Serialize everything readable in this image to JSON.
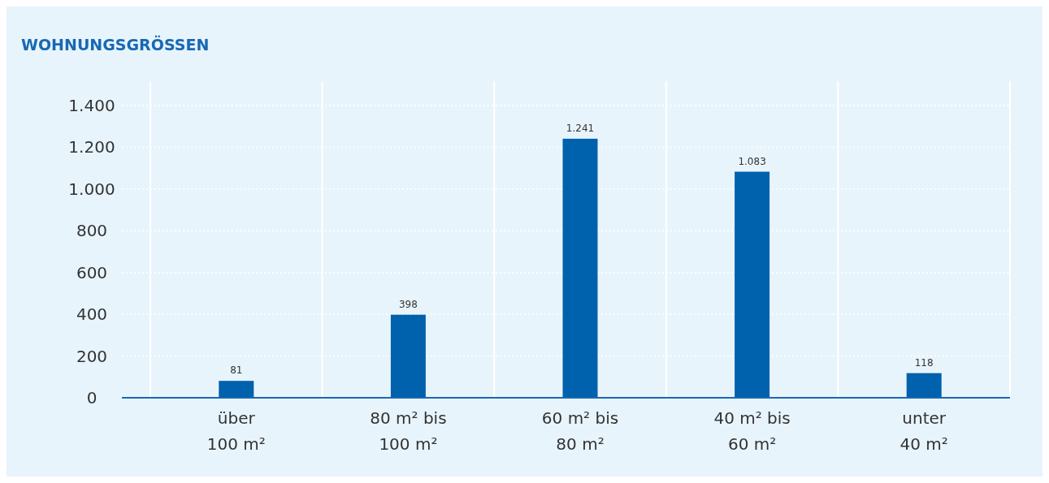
{
  "chart_data": {
    "type": "bar",
    "title": "WOHNUNGSGRÖSSEN",
    "categories": [
      "über\n100 m²",
      "80 m² bis\n100 m²",
      "60 m² bis\n80 m²",
      "40 m² bis\n60 m²",
      "unter\n40 m²"
    ],
    "values": [
      81,
      398,
      1241,
      1083,
      118
    ],
    "value_labels": [
      "81",
      "398",
      "1.241",
      "1.083",
      "118"
    ],
    "color": "#0061ad",
    "ylim": [
      0,
      1400
    ],
    "yticks": [
      0,
      200,
      400,
      600,
      800,
      {
        "value": 1000,
        "label": "1.000"
      },
      {
        "value": 1200,
        "label": "1.200"
      },
      {
        "value": 1400,
        "label": "1.400"
      }
    ],
    "grid": true
  }
}
